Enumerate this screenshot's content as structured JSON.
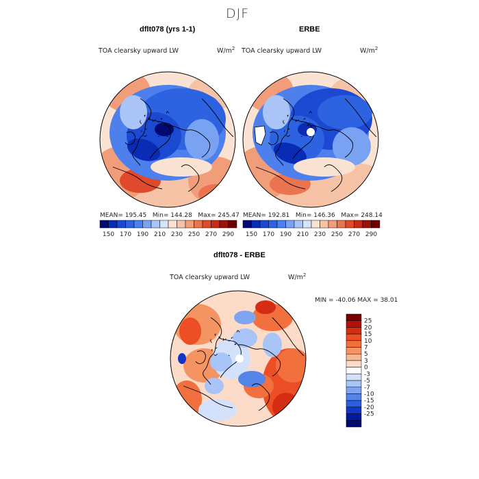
{
  "figure": {
    "title": "DJF"
  },
  "chart_data": [
    {
      "type": "heatmap",
      "projection": "north-polar-stereographic",
      "title": "dflt078 (yrs 1-1)",
      "variable": "TOA clearsky upward LW",
      "units": "W/m",
      "units_exp": "2",
      "stats": {
        "mean_label": "MEAN=",
        "mean": "195.45",
        "min_label": "Min=",
        "min": "144.28",
        "max_label": "Max=",
        "max": "245.47"
      },
      "colorbar": {
        "levels": [
          150,
          170,
          190,
          210,
          230,
          250,
          270,
          290
        ],
        "colors": [
          "#000a72",
          "#0a2bb4",
          "#1c49d2",
          "#2d62e0",
          "#4d80ec",
          "#7aa2f2",
          "#aac4f7",
          "#d6e3fb",
          "#fbe3d4",
          "#f6c3a6",
          "#f29d79",
          "#ea744f",
          "#df4a2d",
          "#c62b19",
          "#9a1209",
          "#6a0000"
        ]
      },
      "field_description": "low OLR over Arctic, Greenland and Siberia (blue), higher over mid-latitude oceans (red)"
    },
    {
      "type": "heatmap",
      "projection": "north-polar-stereographic",
      "title": "ERBE",
      "variable": "TOA clearsky upward LW",
      "units": "W/m",
      "units_exp": "2",
      "stats": {
        "mean_label": "MEAN=",
        "mean": "192.81",
        "min_label": "Min=",
        "min": "146.36",
        "max_label": "Max=",
        "max": "248.14"
      },
      "colorbar": {
        "levels": [
          150,
          170,
          190,
          210,
          230,
          250,
          270,
          290
        ],
        "colors": [
          "#000a72",
          "#0a2bb4",
          "#1c49d2",
          "#2d62e0",
          "#4d80ec",
          "#7aa2f2",
          "#aac4f7",
          "#d6e3fb",
          "#fbe3d4",
          "#f6c3a6",
          "#f29d79",
          "#ea744f",
          "#df4a2d",
          "#c62b19",
          "#9a1209",
          "#6a0000"
        ]
      },
      "field_description": "observed field with missing data at the pole (white dot) and over Greenland"
    },
    {
      "type": "heatmap",
      "projection": "north-polar-stereographic",
      "title": "dflt078 - ERBE",
      "variable": "TOA clearsky upward LW",
      "units": "W/m",
      "units_exp": "2",
      "stats": {
        "min_label": "MIN =",
        "min": "-40.06",
        "max_label": "MAX =",
        "max": "38.01"
      },
      "colorbar": {
        "orientation": "vertical",
        "levels": [
          "25",
          "20",
          "15",
          "10",
          "7",
          "5",
          "3",
          "0",
          "-3",
          "-5",
          "-7",
          "-10",
          "-15",
          "-20",
          "-25"
        ],
        "colors": [
          "#7a0000",
          "#b01207",
          "#d42d14",
          "#ec4e26",
          "#f2703e",
          "#f59463",
          "#f8b895",
          "#fcdcc8",
          "#ffffff",
          "#d3e1fb",
          "#a9c4f6",
          "#7fa4ef",
          "#5584e7",
          "#2d5ee0",
          "#1237c6",
          "#001a9e",
          "#000a72"
        ]
      },
      "field_description": "difference: positive over Pacific and Atlantic storm tracks, negative over Arctic and Siberia"
    }
  ]
}
